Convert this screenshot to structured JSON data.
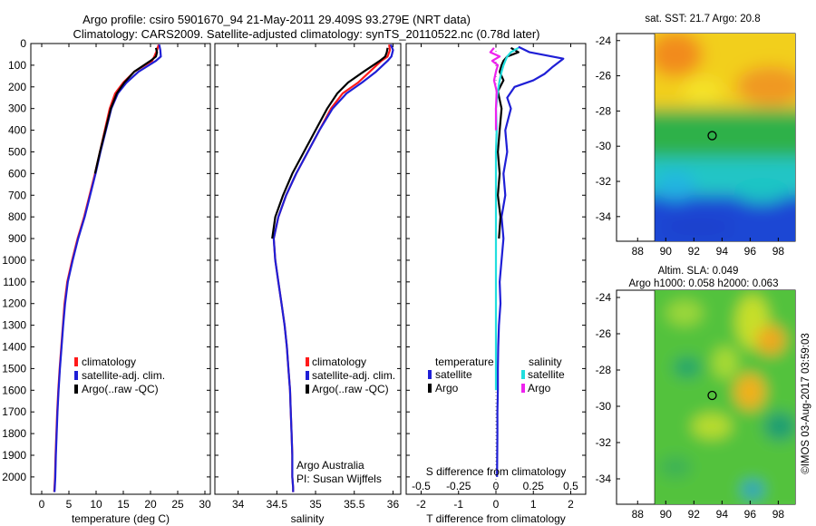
{
  "header": {
    "title_line1": "Argo profile: csiro 5901670_94 21-May-2011 29.409S 93.279E (NRT data)",
    "title_line2": "Climatology: CARS2009. Satellite-adjusted climatology: synTS_20110522.nc (0.78d later)"
  },
  "colors": {
    "climatology": "#ff1a1a",
    "satellite": "#1f1fd6",
    "argo": "#000000",
    "salinity_satellite": "#22dede",
    "salinity_argo": "#ee22ee"
  },
  "chart_data": [
    {
      "type": "line",
      "xlabel": "temperature (deg C)",
      "ylabel": "",
      "xlim": [
        -2,
        31
      ],
      "ylim": [
        2080,
        0
      ],
      "xticks": [
        0,
        5,
        10,
        15,
        20,
        25,
        30
      ],
      "yticks": [
        0,
        100,
        200,
        300,
        400,
        500,
        600,
        700,
        800,
        900,
        1000,
        1100,
        1200,
        1300,
        1400,
        1500,
        1600,
        1700,
        1800,
        1900,
        2000
      ],
      "legend": [
        "climatology",
        "satellite-adj. clim.",
        "Argo(..raw -QC)"
      ],
      "series": [
        {
          "name": "climatology",
          "color": "#ff1a1a",
          "x": [
            21.5,
            21.2,
            20.7,
            20.3,
            17.0,
            15.0,
            13.5,
            12.5,
            11.6,
            10.7,
            9.8,
            8.8,
            7.8,
            6.6,
            5.6,
            4.7,
            4.2,
            3.9,
            3.6,
            3.3,
            3.05,
            2.85,
            2.7,
            2.55,
            2.45,
            2.35,
            2.3
          ],
          "y": [
            5,
            30,
            60,
            80,
            130,
            180,
            230,
            300,
            400,
            500,
            600,
            700,
            800,
            900,
            1000,
            1100,
            1200,
            1300,
            1400,
            1500,
            1600,
            1700,
            1800,
            1900,
            2000,
            2050,
            2070
          ]
        },
        {
          "name": "satellite-adj. clim.",
          "color": "#1f1fd6",
          "x": [
            21.6,
            21.8,
            21.9,
            21.0,
            17.8,
            15.6,
            14.0,
            12.8,
            11.8,
            10.8,
            9.9,
            8.9,
            7.9,
            6.7,
            5.7,
            4.8,
            4.3,
            3.95,
            3.65,
            3.35,
            3.1,
            2.9,
            2.75,
            2.6,
            2.5,
            2.4,
            2.35
          ],
          "y": [
            5,
            30,
            60,
            80,
            130,
            180,
            230,
            300,
            400,
            500,
            600,
            700,
            800,
            900,
            1000,
            1100,
            1200,
            1300,
            1400,
            1500,
            1600,
            1700,
            1800,
            1900,
            2000,
            2050,
            2070
          ]
        },
        {
          "name": "Argo(..raw -QC)",
          "color": "#000000",
          "x": [
            21.0,
            21.2,
            21.0,
            20.0,
            17.0,
            15.2,
            13.8,
            12.7,
            11.7,
            10.7,
            9.8
          ],
          "y": [
            20,
            40,
            60,
            80,
            130,
            180,
            230,
            300,
            400,
            500,
            600
          ]
        }
      ],
      "annotations": []
    },
    {
      "type": "line",
      "xlabel": "salinity",
      "ylabel": "",
      "xlim": [
        33.7,
        36.1
      ],
      "ylim": [
        2080,
        0
      ],
      "xticks": [
        34,
        34.5,
        35,
        35.5,
        36
      ],
      "xticklabels": [
        "34",
        "34.5",
        "35",
        "35.5",
        "36"
      ],
      "legend": [
        "climatology",
        "satellite-adj. clim.",
        "Argo(..raw -QC)"
      ],
      "series": [
        {
          "name": "climatology",
          "color": "#ff1a1a",
          "x": [
            35.95,
            35.96,
            35.93,
            35.85,
            35.7,
            35.55,
            35.35,
            35.2,
            35.05,
            34.9,
            34.75,
            34.62,
            34.52,
            34.46,
            34.48,
            34.52,
            34.56,
            34.6,
            34.63,
            34.65,
            34.67,
            34.68,
            34.69,
            34.7,
            34.7,
            34.71,
            34.71
          ],
          "y": [
            5,
            30,
            60,
            80,
            130,
            180,
            230,
            300,
            400,
            500,
            600,
            700,
            800,
            900,
            1000,
            1100,
            1200,
            1300,
            1400,
            1500,
            1600,
            1700,
            1800,
            1900,
            2000,
            2050,
            2070
          ]
        },
        {
          "name": "satellite-adj. clim.",
          "color": "#1f1fd6",
          "x": [
            35.97,
            36.0,
            35.98,
            35.93,
            35.78,
            35.6,
            35.4,
            35.22,
            35.05,
            34.9,
            34.75,
            34.62,
            34.52,
            34.46,
            34.48,
            34.52,
            34.56,
            34.6,
            34.63,
            34.65,
            34.67,
            34.68,
            34.69,
            34.7,
            34.7,
            34.71,
            34.71
          ],
          "y": [
            5,
            30,
            60,
            80,
            130,
            180,
            230,
            300,
            400,
            500,
            600,
            700,
            800,
            900,
            1000,
            1100,
            1200,
            1300,
            1400,
            1500,
            1600,
            1700,
            1800,
            1900,
            2000,
            2050,
            2070
          ]
        },
        {
          "name": "Argo(..raw -QC)",
          "color": "#000000",
          "x": [
            35.93,
            35.92,
            35.9,
            35.83,
            35.62,
            35.42,
            35.28,
            35.15,
            35.0,
            34.85,
            34.7,
            34.58,
            34.48,
            34.44
          ],
          "y": [
            20,
            40,
            60,
            80,
            130,
            180,
            230,
            300,
            400,
            500,
            600,
            700,
            800,
            900
          ]
        }
      ],
      "annotations": [
        "Argo Australia",
        "PI: Susan Wijffels"
      ]
    },
    {
      "type": "line",
      "xlabel": "T difference from climatology",
      "secondary_xlabel": "S difference from climatology",
      "xlim": [
        -2.4,
        2.4
      ],
      "ylim": [
        2080,
        0
      ],
      "xticks": [
        -2,
        -1,
        0,
        1,
        2
      ],
      "secondary_xticks": [
        -0.5,
        -0.25,
        0,
        0.25,
        0.5
      ],
      "secondary_xticklabels": [
        "-0.5",
        "-0.25",
        "0",
        "0.25",
        "0.5"
      ],
      "legend_titles": [
        "temperature",
        "salinity"
      ],
      "legend": [
        {
          "group": "temperature",
          "name": "satellite",
          "color": "#1f1fd6"
        },
        {
          "group": "temperature",
          "name": "Argo",
          "color": "#000000"
        },
        {
          "group": "salinity",
          "name": "satellite",
          "color": "#22dede"
        },
        {
          "group": "salinity",
          "name": "Argo",
          "color": "#ee22ee"
        }
      ],
      "series": [
        {
          "name": "satellite",
          "group": "temperature",
          "color": "#1f1fd6",
          "x": [
            0.6,
            0.9,
            1.8,
            1.5,
            1.3,
            1.0,
            0.5,
            0.3,
            0.4,
            0.25,
            0.3,
            0.2,
            0.25,
            0.15,
            0.2,
            0.15,
            0.1,
            0.12,
            0.08,
            0.06,
            0.05,
            0.05,
            0.04,
            0.04,
            0.03
          ],
          "y": [
            15,
            40,
            70,
            110,
            140,
            170,
            200,
            250,
            300,
            400,
            500,
            600,
            700,
            800,
            900,
            1000,
            1100,
            1200,
            1300,
            1400,
            1500,
            1600,
            1700,
            1800,
            2000
          ]
        },
        {
          "name": "Argo",
          "group": "temperature",
          "color": "#000000",
          "x": [
            0.4,
            0.6,
            0.3,
            0.2,
            0.15,
            0.1,
            0.2,
            0.05,
            0.15,
            0.1,
            0.05,
            0.1,
            0.05,
            0.12,
            0.08
          ],
          "y": [
            20,
            40,
            60,
            80,
            100,
            130,
            170,
            220,
            300,
            400,
            500,
            600,
            700,
            800,
            900
          ]
        },
        {
          "name": "satellite",
          "group": "salinity",
          "color": "#22dede",
          "x": [
            0.6,
            0.4,
            0.3,
            0.25,
            0.2,
            0.15,
            0.1,
            0.05,
            0.0,
            0.02,
            0.0,
            0.0,
            0.0,
            0.0,
            0.0,
            0.0,
            0.0,
            0.0,
            0.0,
            0.0,
            0.0,
            0.0
          ],
          "y": [
            20,
            40,
            60,
            80,
            100,
            130,
            170,
            220,
            300,
            400,
            500,
            600,
            700,
            800,
            900,
            1000,
            1100,
            1200,
            1300,
            1400,
            1500,
            1600
          ]
        },
        {
          "name": "Argo",
          "group": "salinity",
          "color": "#ee22ee",
          "x": [
            -0.05,
            -0.15,
            0.1,
            -0.1,
            0.05,
            0.0,
            -0.05,
            0.02,
            0.0,
            0.0
          ],
          "y": [
            20,
            40,
            60,
            80,
            100,
            130,
            170,
            220,
            300,
            400
          ]
        }
      ]
    },
    {
      "type": "heatmap",
      "title": "sat. SST: 21.7  Argo: 20.8",
      "xlim": [
        86.5,
        99.2
      ],
      "ylim": [
        -35.4,
        -23.6
      ],
      "xticks": [
        88,
        90,
        92,
        94,
        96,
        98
      ],
      "yticks": [
        -24,
        -26,
        -28,
        -30,
        -32,
        -34
      ],
      "data_region": {
        "x": [
          90,
          99.2
        ],
        "y": [
          -35.4,
          -23.6
        ]
      },
      "marker": {
        "lon": 93.3,
        "lat": -29.4
      }
    },
    {
      "type": "heatmap",
      "title": "Altim. SLA: 0.049",
      "subtitle": "Argo h1000: 0.058  h2000: 0.063",
      "xlim": [
        86.5,
        99.2
      ],
      "ylim": [
        -35.4,
        -23.6
      ],
      "xticks": [
        88,
        90,
        92,
        94,
        96,
        98
      ],
      "yticks": [
        -24,
        -26,
        -28,
        -30,
        -32,
        -34
      ],
      "data_region": {
        "x": [
          90,
          99.2
        ],
        "y": [
          -35.4,
          -23.6
        ]
      },
      "marker": {
        "lon": 93.3,
        "lat": -29.4
      }
    }
  ],
  "footer": {
    "credit": "©IMOS 03-Aug-2017 03:59:03"
  }
}
